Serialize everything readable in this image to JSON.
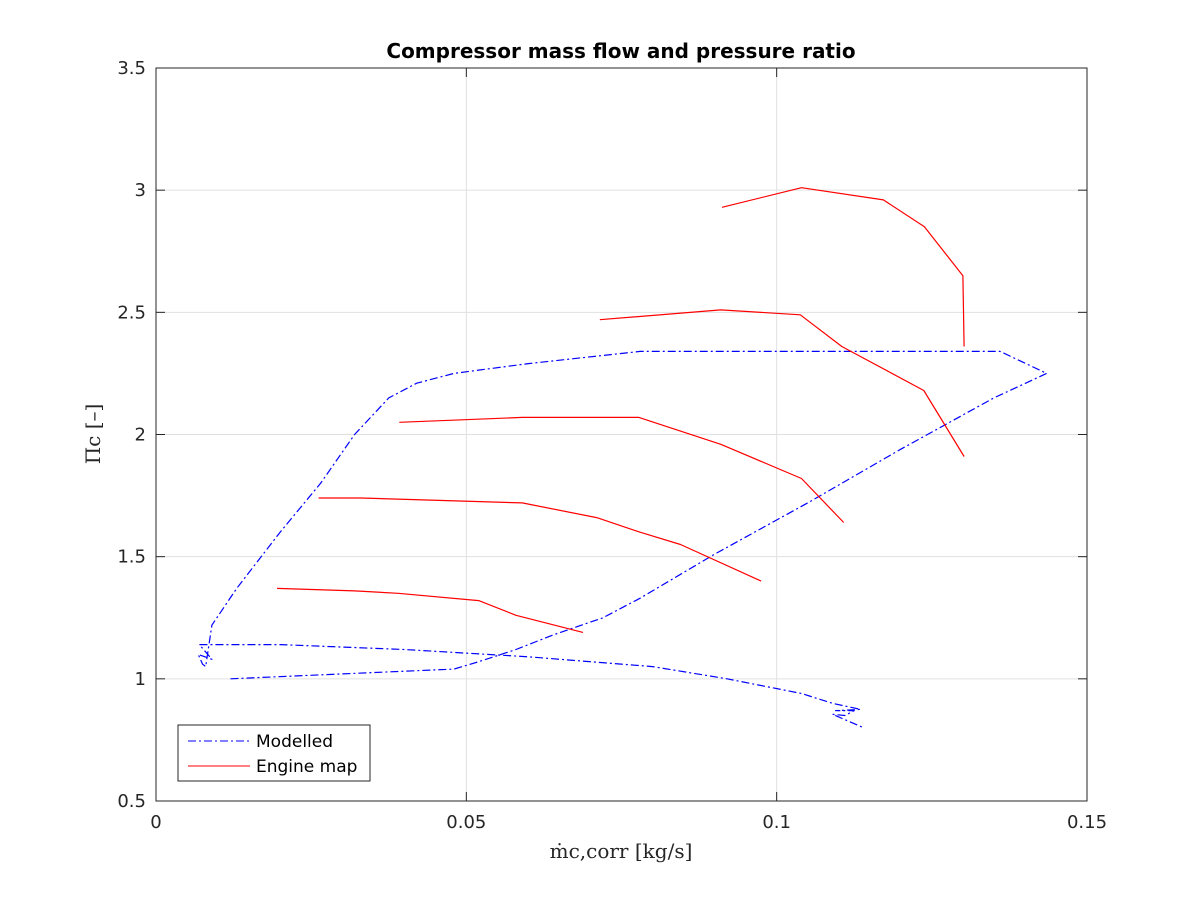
{
  "chart_data": {
    "type": "line",
    "title": "Compressor mass flow and pressure ratio",
    "xlabel": "ṁc,corr [kg/s]",
    "ylabel": "Πc [–]",
    "xlim": [
      0,
      0.15
    ],
    "ylim": [
      0.5,
      3.5
    ],
    "xticks": [
      0,
      0.05,
      0.1,
      0.15
    ],
    "xtick_labels": [
      "0",
      "0.05",
      "0.1",
      "0.15"
    ],
    "yticks": [
      0.5,
      1,
      1.5,
      2,
      2.5,
      3,
      3.5
    ],
    "ytick_labels": [
      "0.5",
      "1",
      "1.5",
      "2",
      "2.5",
      "3",
      "3.5"
    ],
    "grid": true,
    "legend_position": "bottom-left",
    "series": [
      {
        "name": "Modelled",
        "color": "#0000ff",
        "style": "dashdot",
        "points": [
          [
            0.012,
            1.0
          ],
          [
            0.03,
            1.02
          ],
          [
            0.048,
            1.04
          ],
          [
            0.052,
            1.07
          ],
          [
            0.058,
            1.12
          ],
          [
            0.064,
            1.18
          ],
          [
            0.072,
            1.25
          ],
          [
            0.078,
            1.33
          ],
          [
            0.09,
            1.51
          ],
          [
            0.105,
            1.72
          ],
          [
            0.12,
            1.94
          ],
          [
            0.135,
            2.15
          ],
          [
            0.1435,
            2.25
          ],
          [
            0.136,
            2.34
          ],
          [
            0.1,
            2.34
          ],
          [
            0.078,
            2.34
          ],
          [
            0.06,
            2.29
          ],
          [
            0.048,
            2.25
          ],
          [
            0.042,
            2.21
          ],
          [
            0.0375,
            2.15
          ],
          [
            0.032,
            2.0
          ],
          [
            0.0265,
            1.8
          ],
          [
            0.02,
            1.6
          ],
          [
            0.013,
            1.37
          ],
          [
            0.009,
            1.22
          ],
          [
            0.008,
            1.05
          ],
          [
            0.0075,
            1.06
          ],
          [
            0.0068,
            1.1
          ],
          [
            0.009,
            1.08
          ],
          [
            0.007,
            1.14
          ],
          [
            0.02,
            1.14
          ],
          [
            0.04,
            1.12
          ],
          [
            0.06,
            1.09
          ],
          [
            0.08,
            1.05
          ],
          [
            0.092,
            1.0
          ],
          [
            0.104,
            0.94
          ],
          [
            0.109,
            0.9
          ],
          [
            0.1135,
            0.875
          ],
          [
            0.1095,
            0.87
          ],
          [
            0.1125,
            0.87
          ],
          [
            0.111,
            0.85
          ],
          [
            0.109,
            0.855
          ],
          [
            0.114,
            0.8
          ]
        ]
      },
      {
        "name": "Engine map",
        "color": "#ff0000",
        "style": "solid",
        "lines": [
          [
            [
              0.0195,
              1.37
            ],
            [
              0.032,
              1.36
            ],
            [
              0.039,
              1.35
            ],
            [
              0.052,
              1.32
            ],
            [
              0.058,
              1.26
            ],
            [
              0.0688,
              1.19
            ]
          ],
          [
            [
              0.0262,
              1.74
            ],
            [
              0.033,
              1.74
            ],
            [
              0.059,
              1.72
            ],
            [
              0.071,
              1.66
            ],
            [
              0.078,
              1.6
            ],
            [
              0.0845,
              1.55
            ],
            [
              0.0975,
              1.4
            ]
          ],
          [
            [
              0.0392,
              2.05
            ],
            [
              0.059,
              2.07
            ],
            [
              0.0778,
              2.07
            ],
            [
              0.091,
              1.96
            ],
            [
              0.104,
              1.82
            ],
            [
              0.1108,
              1.64
            ]
          ],
          [
            [
              0.0715,
              2.47
            ],
            [
              0.091,
              2.51
            ],
            [
              0.1038,
              2.49
            ],
            [
              0.1105,
              2.36
            ],
            [
              0.1237,
              2.18
            ],
            [
              0.1302,
              1.91
            ]
          ],
          [
            [
              0.0912,
              2.93
            ],
            [
              0.104,
              3.01
            ],
            [
              0.1172,
              2.96
            ],
            [
              0.1238,
              2.85
            ],
            [
              0.13,
              2.65
            ],
            [
              0.1302,
              2.36
            ]
          ]
        ]
      }
    ]
  }
}
